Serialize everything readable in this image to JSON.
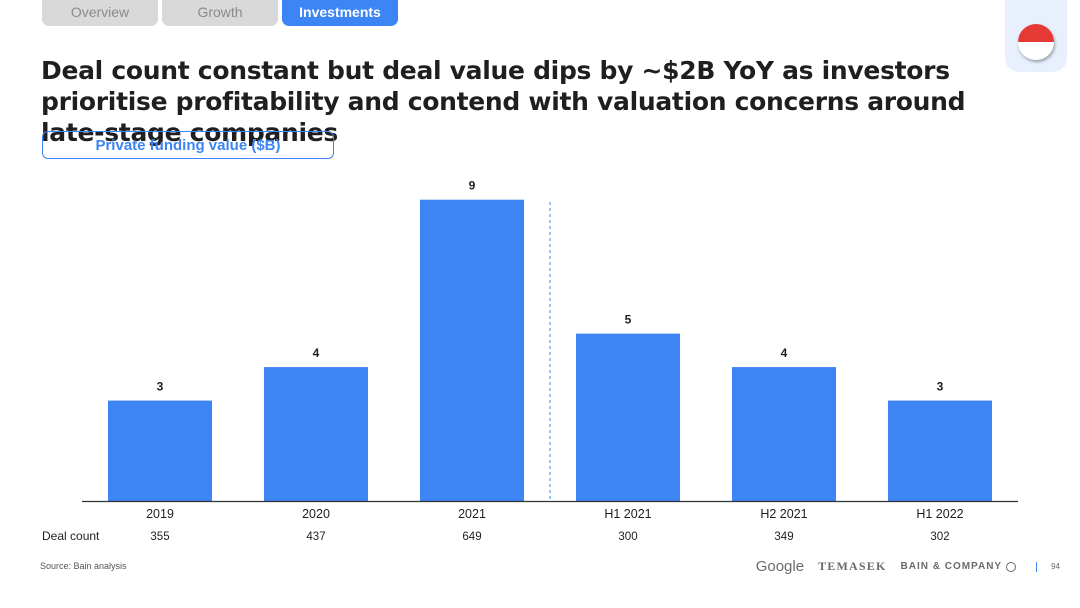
{
  "tabs": [
    {
      "label": "Overview",
      "active": false
    },
    {
      "label": "Growth",
      "active": false
    },
    {
      "label": "Investments",
      "active": true
    }
  ],
  "headline": "Deal count constant but deal value dips by ~$2B YoY as investors prioritise profitability and contend with valuation concerns around late-stage companies",
  "pill_label": "Private funding value ($B)",
  "flag": {
    "top_color": "#e53935",
    "bottom_color": "#ffffff",
    "icon": "indonesia-flag-icon"
  },
  "colors": {
    "bar": "#3d84f5",
    "accent": "#3d84f5",
    "divider": "#3d84f5"
  },
  "chart_data": {
    "type": "bar",
    "title": "Private funding value ($B)",
    "categories": [
      "2019",
      "2020",
      "2021",
      "H1 2021",
      "H2 2021",
      "H1 2022"
    ],
    "values": [
      3,
      4,
      9,
      5,
      4,
      3
    ],
    "value_labels": [
      "3",
      "4",
      "9",
      "5",
      "4",
      "3"
    ],
    "ylim": [
      0,
      9.2
    ],
    "grid": false,
    "divider_after_category": "2021",
    "deal_count_label": "Deal count",
    "deal_counts": [
      "355",
      "437",
      "649",
      "300",
      "349",
      "302"
    ]
  },
  "source": "Source: Bain analysis",
  "footer": {
    "google": "Google",
    "temasek": "TEMASEK",
    "bain": "BAIN & COMPANY",
    "page_number": "94"
  }
}
